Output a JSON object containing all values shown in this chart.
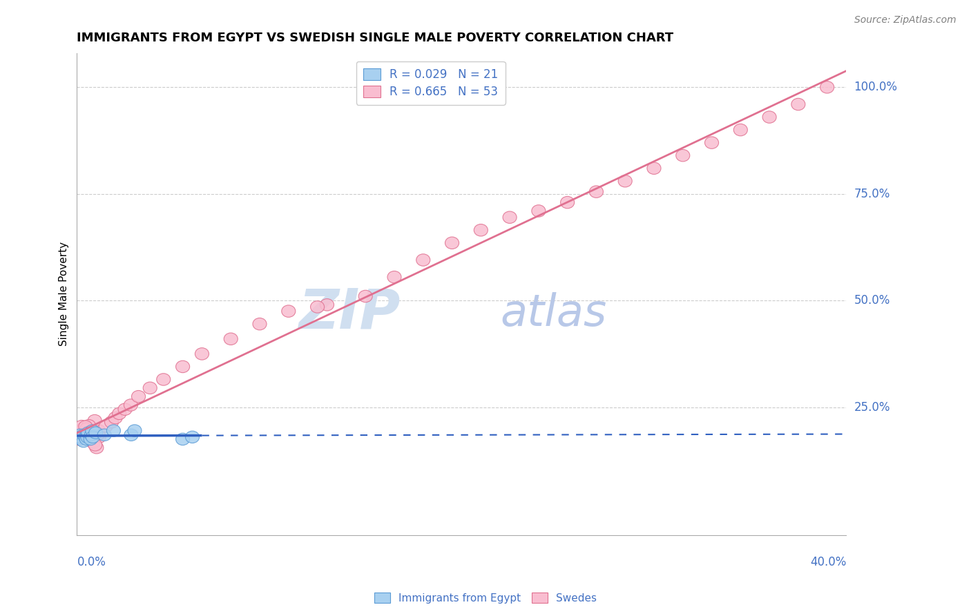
{
  "title": "IMMIGRANTS FROM EGYPT VS SWEDISH SINGLE MALE POVERTY CORRELATION CHART",
  "source": "Source: ZipAtlas.com",
  "ylabel": "Single Male Poverty",
  "xmin": 0.0,
  "xmax": 0.4,
  "ymin": -0.05,
  "ymax": 1.08,
  "legend_entry1": "R = 0.029   N = 21",
  "legend_entry2": "R = 0.665   N = 53",
  "legend_color1": "#a8d0f0",
  "legend_color2": "#f9bdd0",
  "series1_color": "#a8d0f0",
  "series2_color": "#f9bdd0",
  "series1_edge": "#5b9bd5",
  "series2_edge": "#e07090",
  "trendline1_color": "#3060c0",
  "trendline2_color": "#e07090",
  "watermark_color": "#d0dff0",
  "background_color": "#ffffff",
  "grid_color": "#cccccc",
  "tick_label_color": "#4472c4",
  "egypt_x": [
    0.001,
    0.002,
    0.002,
    0.003,
    0.003,
    0.004,
    0.004,
    0.005,
    0.005,
    0.006,
    0.006,
    0.007,
    0.007,
    0.008,
    0.009,
    0.01,
    0.012,
    0.015,
    0.018,
    0.03,
    0.06
  ],
  "egypt_y": [
    0.175,
    0.18,
    0.165,
    0.18,
    0.175,
    0.185,
    0.175,
    0.18,
    0.17,
    0.18,
    0.19,
    0.175,
    0.185,
    0.17,
    0.185,
    0.18,
    0.19,
    0.185,
    0.2,
    0.3,
    0.175
  ],
  "swedes_x": [
    0.001,
    0.002,
    0.002,
    0.003,
    0.003,
    0.004,
    0.004,
    0.005,
    0.005,
    0.006,
    0.006,
    0.007,
    0.008,
    0.009,
    0.01,
    0.011,
    0.012,
    0.013,
    0.015,
    0.016,
    0.018,
    0.02,
    0.022,
    0.025,
    0.03,
    0.035,
    0.04,
    0.05,
    0.06,
    0.07,
    0.08,
    0.095,
    0.11,
    0.13,
    0.15,
    0.17,
    0.19,
    0.21,
    0.23,
    0.25,
    0.27,
    0.29,
    0.31,
    0.33,
    0.35,
    0.37,
    0.39,
    0.13,
    0.15,
    0.18,
    0.2,
    0.22,
    0.24
  ],
  "swedes_y": [
    0.175,
    0.18,
    0.165,
    0.18,
    0.17,
    0.185,
    0.175,
    0.185,
    0.175,
    0.185,
    0.18,
    0.185,
    0.175,
    0.19,
    0.185,
    0.2,
    0.195,
    0.2,
    0.195,
    0.205,
    0.215,
    0.22,
    0.22,
    0.225,
    0.245,
    0.265,
    0.285,
    0.3,
    0.33,
    0.36,
    0.38,
    0.41,
    0.44,
    0.46,
    0.5,
    0.55,
    0.6,
    0.65,
    0.68,
    0.72,
    0.75,
    0.78,
    0.82,
    0.86,
    0.9,
    0.95,
    1.0,
    0.47,
    0.5,
    0.53,
    0.57,
    0.61,
    0.65
  ]
}
